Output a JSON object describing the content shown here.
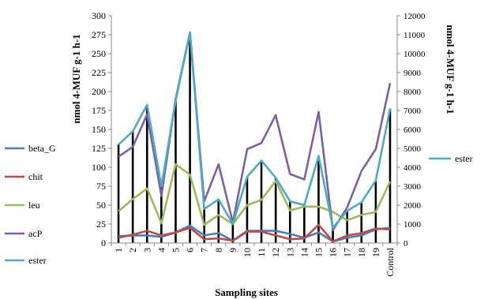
{
  "chart_data": {
    "type": "line",
    "title": "",
    "xlabel": "Sampling sites",
    "ylabel_left": "nmol 4-MUF g-1 h-1",
    "ylabel_right": "nmol 4-MUF g-1 h-1",
    "ylim_left": [
      0,
      300
    ],
    "ylim_right": [
      0,
      12000
    ],
    "yticks_left": [
      "0",
      "25",
      "50",
      "75",
      "100",
      "125",
      "150",
      "175",
      "200",
      "225",
      "250",
      "275",
      "300"
    ],
    "yticks_right": [
      "0",
      "1000",
      "2000",
      "3000",
      "4000",
      "5000",
      "6000",
      "7000",
      "8000",
      "9000",
      "10000",
      "11000",
      "12000"
    ],
    "categories": [
      "1",
      "2",
      "3",
      "4",
      "5",
      "6",
      "7",
      "8",
      "9",
      "10",
      "11",
      "12",
      "13",
      "14",
      "15",
      "16",
      "17",
      "18",
      "19",
      "Control"
    ],
    "grid": false,
    "legend_left": [
      "beta_G",
      "chit",
      "leu",
      "acP",
      "ester"
    ],
    "legend_right": [
      "ester"
    ],
    "series": [
      {
        "name": "beta_G",
        "axis": "left",
        "color": "#4a7ebb",
        "values": [
          9,
          10,
          10,
          8,
          14,
          23,
          10,
          13,
          3,
          16,
          16,
          16,
          12,
          7,
          14,
          2,
          7,
          10,
          18,
          20
        ]
      },
      {
        "name": "chit",
        "axis": "left",
        "color": "#be4b48",
        "values": [
          7,
          11,
          16,
          10,
          14,
          20,
          5,
          6,
          3,
          15,
          15,
          10,
          5,
          6,
          24,
          2,
          10,
          13,
          19,
          18
        ]
      },
      {
        "name": "leu",
        "axis": "left",
        "color": "#9bbb59",
        "values": [
          42,
          58,
          72,
          26,
          104,
          90,
          24,
          37,
          25,
          50,
          57,
          82,
          43,
          48,
          48,
          41,
          30,
          37,
          41,
          81
        ]
      },
      {
        "name": "acP",
        "axis": "left",
        "color": "#7d60a0",
        "values": [
          114,
          127,
          170,
          62,
          190,
          278,
          55,
          104,
          27,
          124,
          132,
          169,
          91,
          84,
          173,
          17,
          47,
          95,
          124,
          211
        ]
      },
      {
        "name": "ester",
        "axis": "right",
        "color": "#4bacc6",
        "values": [
          5200,
          5900,
          7300,
          3000,
          7500,
          11100,
          1800,
          2300,
          1000,
          3500,
          4350,
          3450,
          2200,
          2000,
          4600,
          800,
          1700,
          2150,
          3300,
          7100
        ]
      },
      {
        "name": "",
        "axis": "right",
        "color": "#000000",
        "style": "bars",
        "values": [
          5200,
          5900,
          7300,
          3000,
          7500,
          11100,
          1800,
          2300,
          1000,
          3500,
          4350,
          3450,
          2200,
          2000,
          4600,
          800,
          1700,
          2150,
          3300,
          7100
        ]
      }
    ]
  }
}
